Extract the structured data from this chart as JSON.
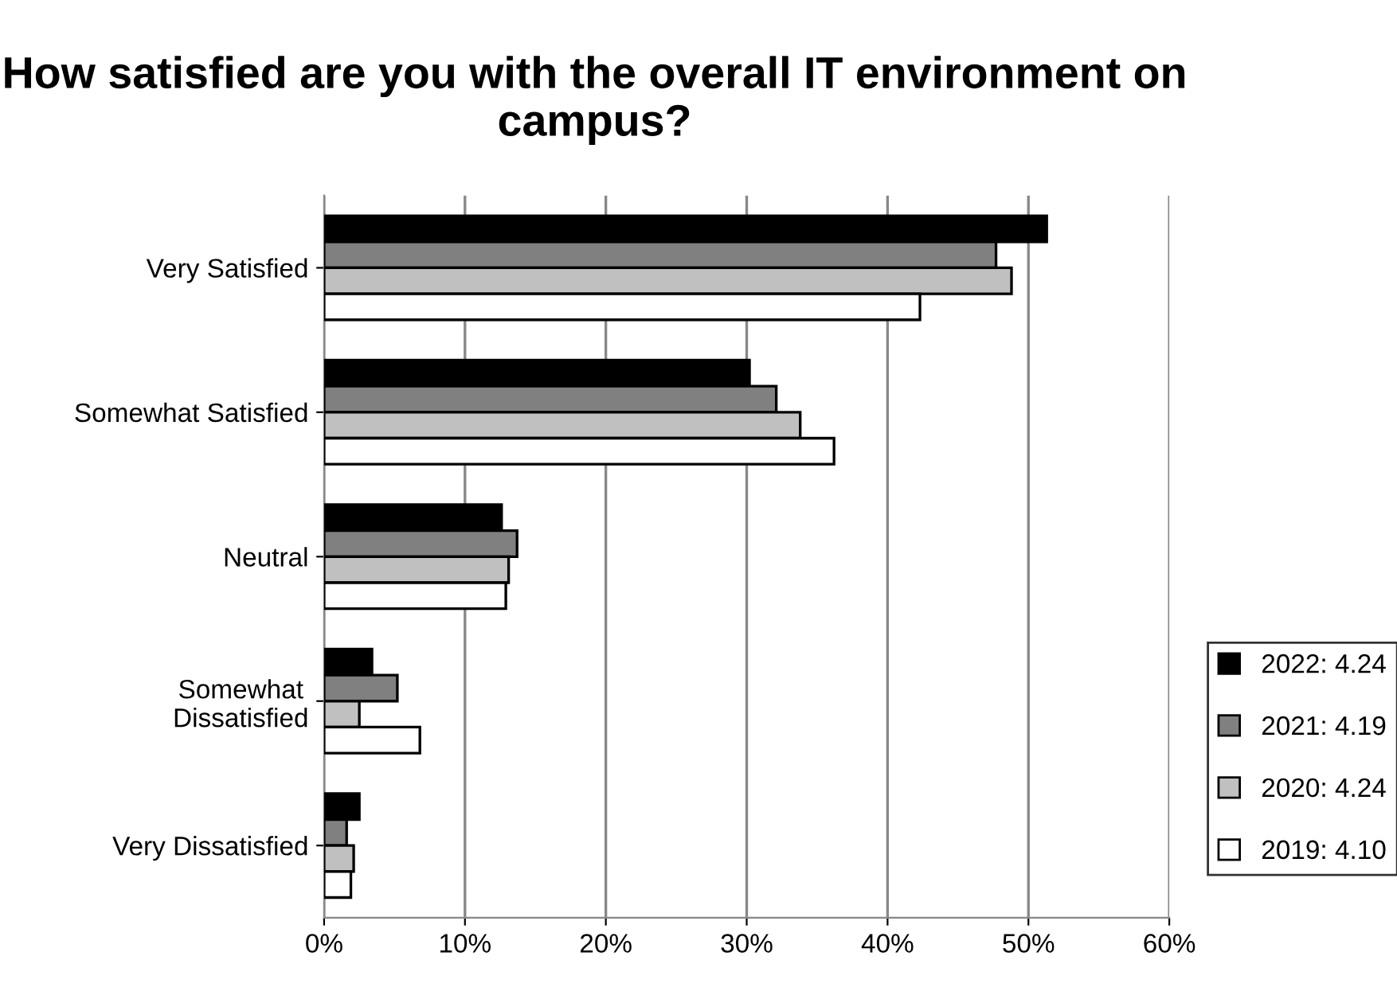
{
  "chart_data": {
    "type": "bar",
    "orientation": "horizontal",
    "title": "How satisfied are you with the overall IT environment on campus?",
    "categories": [
      "Very Satisfied",
      "Somewhat Satisfied",
      "Neutral",
      "Somewhat\nDissatisfied",
      "Very Dissatisfied"
    ],
    "series": [
      {
        "name": "2022: 4.24",
        "color": "#000000",
        "values": [
          51.3,
          30.2,
          12.6,
          3.4,
          2.5
        ]
      },
      {
        "name": "2021: 4.19",
        "color": "#808080",
        "values": [
          47.7,
          32.1,
          13.7,
          5.2,
          1.6
        ]
      },
      {
        "name": "2020: 4.24",
        "color": "#c0c0c0",
        "values": [
          48.8,
          33.8,
          13.1,
          2.5,
          2.1
        ]
      },
      {
        "name": "2019: 4.10",
        "color": "#ffffff",
        "values": [
          42.3,
          36.2,
          12.9,
          6.8,
          1.9
        ]
      }
    ],
    "xlim": [
      0,
      60
    ],
    "xticks": [
      {
        "value": 0,
        "label": "0%"
      },
      {
        "value": 10,
        "label": "10%"
      },
      {
        "value": 20,
        "label": "20%"
      },
      {
        "value": 30,
        "label": "30%"
      },
      {
        "value": 40,
        "label": "40%"
      },
      {
        "value": 50,
        "label": "50%"
      },
      {
        "value": 60,
        "label": "60%"
      }
    ],
    "grid": "x",
    "legend": "right"
  }
}
